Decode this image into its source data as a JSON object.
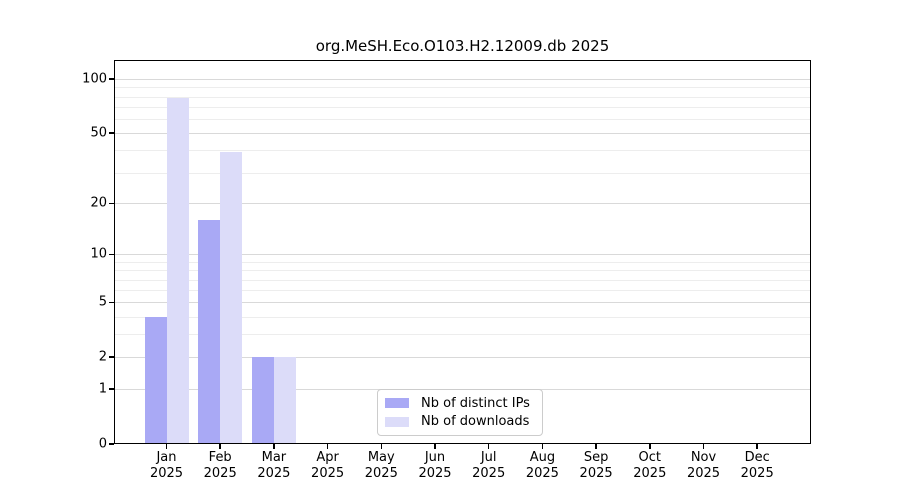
{
  "chart_data": {
    "type": "bar",
    "title": "org.MeSH.Eco.O103.H2.12009.db 2025",
    "year": "2025",
    "categories": [
      "Jan",
      "Feb",
      "Mar",
      "Apr",
      "May",
      "Jun",
      "Jul",
      "Aug",
      "Sep",
      "Oct",
      "Nov",
      "Dec"
    ],
    "series": [
      {
        "name": "Nb of distinct IPs",
        "color": "#a9a9f5",
        "values": [
          4,
          16,
          2,
          0,
          0,
          0,
          0,
          0,
          0,
          0,
          0,
          0
        ]
      },
      {
        "name": "Nb of downloads",
        "color": "#dcdcf9",
        "values": [
          79,
          39,
          2,
          0,
          0,
          0,
          0,
          0,
          0,
          0,
          0,
          0
        ]
      }
    ],
    "y_scale": "log10(1+x)",
    "y_major_ticks": [
      0,
      1,
      2,
      5,
      10,
      20,
      50,
      100
    ],
    "y_minor_ticks": [
      3,
      4,
      6,
      7,
      8,
      9,
      30,
      40,
      60,
      70,
      80,
      90
    ],
    "ylim": [
      0,
      127
    ],
    "xlabel": "",
    "ylabel": "",
    "grid": true,
    "legend_position": "lower center"
  },
  "colors": {
    "bar_distinct_ips": "#a9a9f5",
    "bar_downloads": "#dcdcf9",
    "major_grid": "#d9d9d9",
    "minor_grid": "#ededed",
    "axis": "#000000",
    "legend_border": "#cccccc",
    "background": "#ffffff"
  }
}
